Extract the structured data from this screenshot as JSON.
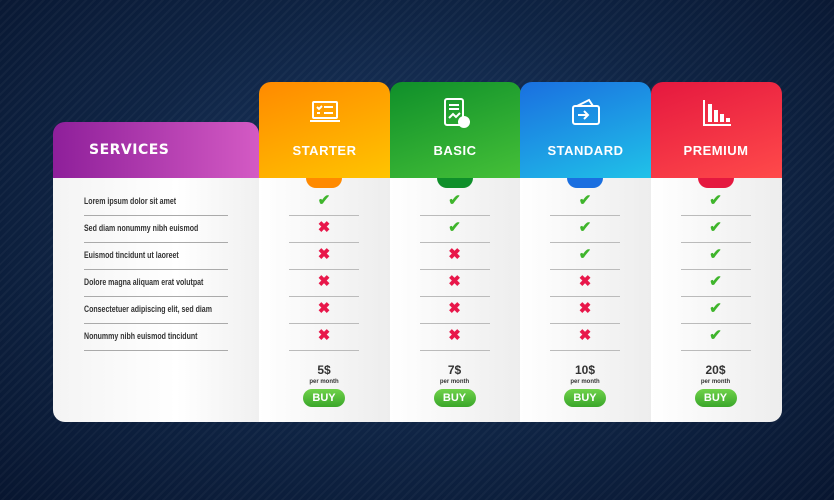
{
  "services": {
    "title": "SERVICES",
    "features": [
      "Lorem ipsum dolor sit amet",
      "Sed diam nonummy nibh euismod",
      "Euismod tincidunt ut laoreet",
      "Dolore magna aliquam erat volutpat",
      "Consectetuer adipiscing elit, sed diam",
      "Nonummy nibh euismod tincidunt"
    ]
  },
  "plans": [
    {
      "name": "STARTER",
      "icon": "laptop-checklist-icon",
      "color": "#ff8a00",
      "color2": "#ffc400",
      "price": "5$",
      "period": "per month",
      "buy": "BUY",
      "features": [
        true,
        false,
        false,
        false,
        false,
        false
      ]
    },
    {
      "name": "BASIC",
      "icon": "report-document-icon",
      "color": "#0f8f2a",
      "color2": "#45c038",
      "price": "7$",
      "period": "per month",
      "buy": "BUY",
      "features": [
        true,
        true,
        false,
        false,
        false,
        false
      ]
    },
    {
      "name": "STANDARD",
      "icon": "wallet-transfer-icon",
      "color": "#1a6fe0",
      "color2": "#20c2e8",
      "price": "10$",
      "period": "per month",
      "buy": "BUY",
      "features": [
        true,
        true,
        true,
        false,
        false,
        false
      ]
    },
    {
      "name": "PREMIUM",
      "icon": "bar-chart-icon",
      "color": "#e5183f",
      "color2": "#ff4a4a",
      "price": "20$",
      "period": "per month",
      "buy": "BUY",
      "features": [
        true,
        true,
        true,
        true,
        true,
        true
      ]
    }
  ]
}
